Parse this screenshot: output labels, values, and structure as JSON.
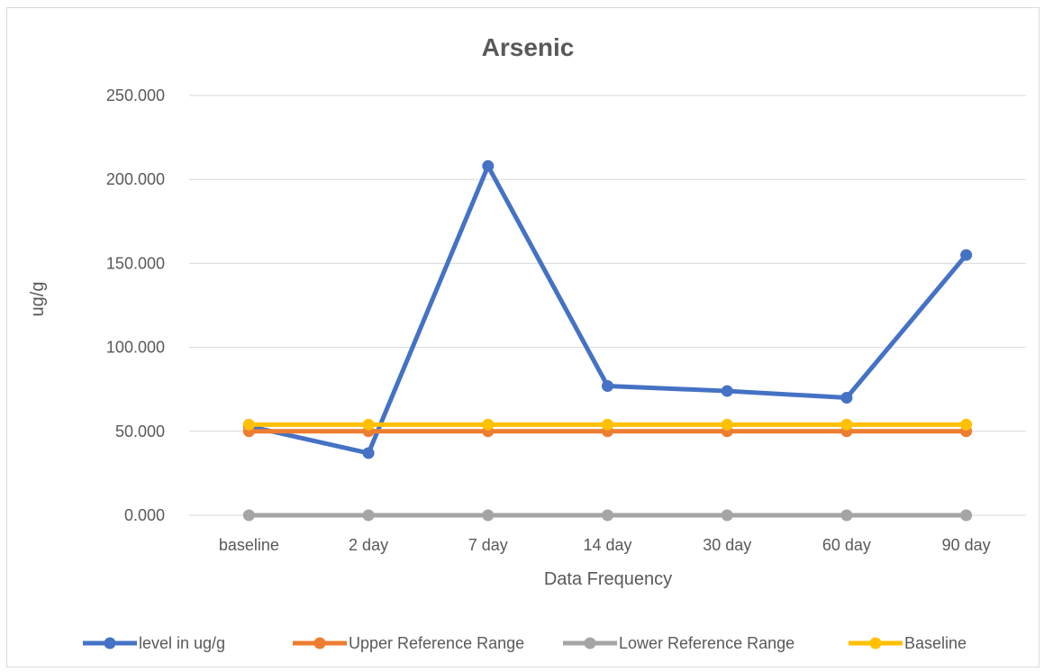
{
  "chart_data": {
    "type": "line",
    "title": "Arsenic",
    "xlabel": "Data Frequency",
    "ylabel": "ug/g",
    "categories": [
      "baseline",
      "2 day",
      "7 day",
      "14 day",
      "30 day",
      "60 day",
      "90 day"
    ],
    "ylim": [
      0,
      250
    ],
    "yticks": [
      "0.000",
      "50.000",
      "100.000",
      "150.000",
      "200.000",
      "250.000"
    ],
    "ytick_values": [
      0,
      50,
      100,
      150,
      200,
      250
    ],
    "grid": true,
    "legend_position": "bottom",
    "series": [
      {
        "name": "level in ug/g",
        "color": "#4472c4",
        "values": [
          53,
          37,
          208,
          77,
          74,
          70,
          155
        ]
      },
      {
        "name": "Upper  Reference Range",
        "color": "#ed7d31",
        "values": [
          50,
          50,
          50,
          50,
          50,
          50,
          50
        ]
      },
      {
        "name": "Lower Reference Range",
        "color": "#a5a5a5",
        "values": [
          0,
          0,
          0,
          0,
          0,
          0,
          0
        ]
      },
      {
        "name": "Baseline",
        "color": "#ffc000",
        "values": [
          54,
          54,
          54,
          54,
          54,
          54,
          54
        ]
      }
    ]
  }
}
